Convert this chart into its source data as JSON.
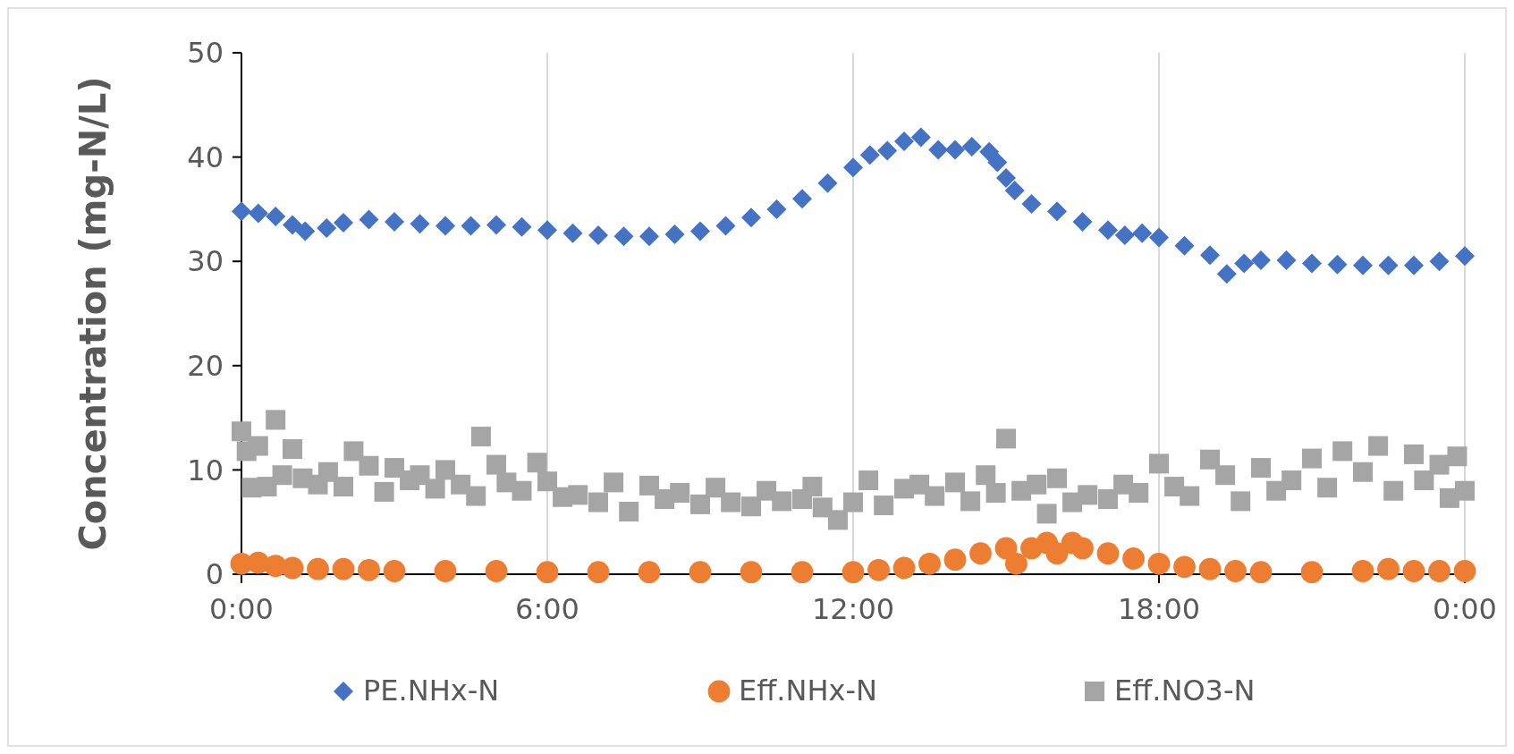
{
  "chart_data": {
    "type": "scatter",
    "ylabel": "Concentration (mg-N/L)",
    "xlim": [
      0,
      24
    ],
    "xticks": [
      {
        "value": 0,
        "label": "0:00"
      },
      {
        "value": 6,
        "label": "6:00"
      },
      {
        "value": 12,
        "label": "12:00"
      },
      {
        "value": 18,
        "label": "18:00"
      },
      {
        "value": 24,
        "label": "0:00"
      }
    ],
    "ylim": [
      0,
      50
    ],
    "yticks": [
      0,
      10,
      20,
      30,
      40,
      50
    ],
    "grid": "x",
    "legend": "bottom",
    "series": [
      {
        "name": "PE.NHx-N",
        "color": "#4472c4",
        "marker": "diamond",
        "x": [
          0,
          0.33,
          0.67,
          1,
          1.25,
          1.67,
          2,
          2.5,
          3,
          3.5,
          4,
          4.5,
          5,
          5.5,
          6,
          6.5,
          7,
          7.5,
          8,
          8.5,
          9,
          9.5,
          10,
          10.5,
          11,
          11.5,
          12,
          12.33,
          12.67,
          13,
          13.33,
          13.67,
          14,
          14.33,
          14.67,
          14.83,
          15,
          15.17,
          15.5,
          16,
          16.5,
          17,
          17.33,
          17.67,
          18,
          18.5,
          19,
          19.33,
          19.67,
          20,
          20.5,
          21,
          21.5,
          22,
          22.5,
          23,
          23.5,
          24
        ],
        "values": [
          34.8,
          34.6,
          34.3,
          33.5,
          32.9,
          33.2,
          33.7,
          34.0,
          33.8,
          33.6,
          33.4,
          33.4,
          33.5,
          33.3,
          33.0,
          32.7,
          32.5,
          32.4,
          32.4,
          32.6,
          32.9,
          33.4,
          34.2,
          35.0,
          36.0,
          37.5,
          39.0,
          40.2,
          40.6,
          41.5,
          41.9,
          40.7,
          40.7,
          41.0,
          40.5,
          39.5,
          38.0,
          36.8,
          35.5,
          34.8,
          33.8,
          33.0,
          32.5,
          32.7,
          32.3,
          31.5,
          30.6,
          28.8,
          29.8,
          30.1,
          30.1,
          29.8,
          29.7,
          29.6,
          29.6,
          29.6,
          30.0,
          30.5
        ]
      },
      {
        "name": "Eff.NHx-N",
        "color": "#ed7d31",
        "marker": "circle",
        "x": [
          0,
          0.33,
          0.67,
          1,
          1.5,
          2,
          2.5,
          3,
          4,
          5,
          6,
          7,
          8,
          9,
          10,
          11,
          12,
          12.5,
          13,
          13.5,
          14,
          14.5,
          15,
          15.2,
          15.5,
          15.8,
          16,
          16.3,
          16.5,
          17,
          17.5,
          18,
          18.5,
          19,
          19.5,
          20,
          21,
          22,
          22.5,
          23,
          23.5,
          24
        ],
        "values": [
          1.0,
          1.1,
          0.8,
          0.6,
          0.5,
          0.5,
          0.4,
          0.3,
          0.3,
          0.3,
          0.2,
          0.2,
          0.2,
          0.2,
          0.2,
          0.2,
          0.2,
          0.4,
          0.6,
          1.0,
          1.4,
          2.0,
          2.5,
          1.0,
          2.5,
          3.0,
          2.0,
          3.0,
          2.5,
          2.0,
          1.5,
          1.0,
          0.7,
          0.5,
          0.3,
          0.2,
          0.2,
          0.3,
          0.5,
          0.3,
          0.3,
          0.3
        ]
      },
      {
        "name": "Eff.NO3-N",
        "color": "#a5a5a5",
        "marker": "square",
        "x": [
          0,
          0.1,
          0.2,
          0.33,
          0.5,
          0.67,
          0.8,
          1,
          1.2,
          1.5,
          1.7,
          2,
          2.2,
          2.5,
          2.8,
          3,
          3.3,
          3.5,
          3.8,
          4,
          4.3,
          4.6,
          4.7,
          5,
          5.2,
          5.5,
          5.8,
          6,
          6.3,
          6.6,
          7,
          7.3,
          7.6,
          8,
          8.3,
          8.6,
          9,
          9.3,
          9.6,
          10,
          10.3,
          10.6,
          11,
          11.2,
          11.4,
          11.7,
          12,
          12.3,
          12.6,
          13,
          13.3,
          13.6,
          14,
          14.3,
          14.6,
          14.8,
          15,
          15.3,
          15.6,
          15.8,
          16,
          16.3,
          16.6,
          17,
          17.3,
          17.6,
          18,
          18.3,
          18.6,
          19,
          19.3,
          19.6,
          20,
          20.3,
          20.6,
          21,
          21.3,
          21.6,
          22,
          22.3,
          22.6,
          23,
          23.2,
          23.5,
          23.7,
          23.85,
          24
        ],
        "values": [
          13.7,
          11.8,
          8.3,
          12.3,
          8.4,
          14.8,
          9.5,
          12.0,
          9.2,
          8.6,
          9.8,
          8.4,
          11.8,
          10.4,
          7.9,
          10.2,
          9.0,
          9.5,
          8.2,
          10.0,
          8.6,
          7.5,
          13.2,
          10.5,
          8.8,
          8.0,
          10.7,
          8.9,
          7.4,
          7.6,
          6.9,
          8.8,
          6.0,
          8.5,
          7.2,
          7.8,
          6.7,
          8.3,
          6.9,
          6.5,
          8.0,
          7.0,
          7.2,
          8.4,
          6.4,
          5.2,
          6.9,
          9.0,
          6.6,
          8.2,
          8.6,
          7.5,
          8.8,
          7.0,
          9.5,
          7.8,
          13.0,
          8.0,
          8.6,
          5.8,
          9.2,
          6.9,
          7.6,
          7.2,
          8.6,
          7.8,
          10.6,
          8.4,
          7.5,
          11.0,
          9.5,
          7.0,
          10.2,
          8.0,
          9.0,
          11.1,
          8.3,
          11.8,
          9.8,
          12.3,
          8.0,
          11.5,
          9.0,
          10.5,
          7.3,
          11.3,
          8.0
        ]
      }
    ]
  }
}
